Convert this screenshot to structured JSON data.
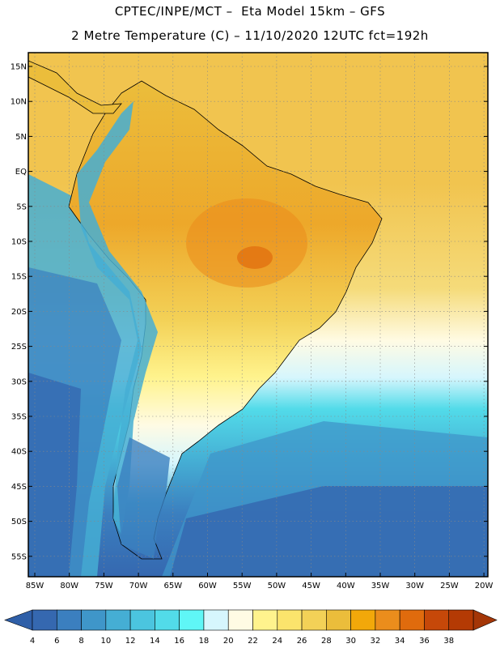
{
  "header": {
    "title_line1": "CPTEC/INPE/MCT –  Eta Model 15km – GFS",
    "title_line2": "2 Metre Temperature (C) – 11/10/2020 12UTC fct=192h"
  },
  "axes": {
    "lat_labels": [
      "15N",
      "10N",
      "5N",
      "EQ",
      "5S",
      "10S",
      "15S",
      "20S",
      "25S",
      "30S",
      "35S",
      "40S",
      "45S",
      "50S",
      "55S"
    ],
    "lon_labels": [
      "85W",
      "80W",
      "75W",
      "70W",
      "65W",
      "60W",
      "55W",
      "50W",
      "45W",
      "40W",
      "35W",
      "30W",
      "25W",
      "20W"
    ]
  },
  "legend": {
    "values": [
      "4",
      "6",
      "8",
      "10",
      "12",
      "14",
      "16",
      "18",
      "20",
      "22",
      "24",
      "26",
      "28",
      "30",
      "32",
      "34",
      "36",
      "38"
    ],
    "colors": [
      "#3568b0",
      "#3b7fbf",
      "#3f96c9",
      "#45aed4",
      "#4bc5df",
      "#52dbe9",
      "#5ff6f6",
      "#d6f6fd",
      "#fffbe4",
      "#fff38d",
      "#fbe46c",
      "#f3d157",
      "#ebbd3b",
      "#f2a80a",
      "#eb8d1c",
      "#e06b0d",
      "#c64809",
      "#b43a04"
    ]
  },
  "colors": {
    "arrow_left": "#2f5fa8",
    "arrow_right": "#a43607"
  }
}
